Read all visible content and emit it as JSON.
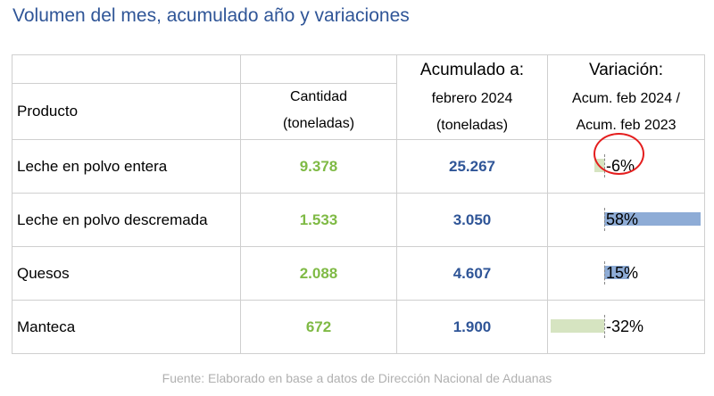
{
  "title": "Volumen del mes, acumulado año y variaciones",
  "headers": {
    "producto": "Producto",
    "cantidad_l1": "Cantidad",
    "cantidad_l2": "(toneladas)",
    "acumulado_l1": "Acumulado a:",
    "acumulado_l2": "febrero 2024",
    "acumulado_l3": "(toneladas)",
    "variacion_l1": "Variación:",
    "variacion_l2": "Acum. feb 2024 /",
    "variacion_l3": "Acum. feb 2023"
  },
  "rows": [
    {
      "producto": "Leche en polvo entera",
      "cantidad": "9.378",
      "acumulado": "25.267",
      "variacion": "-6%"
    },
    {
      "producto": "Leche en polvo descremada",
      "cantidad": "1.533",
      "acumulado": "3.050",
      "variacion": "58%"
    },
    {
      "producto": "Quesos",
      "cantidad": "2.088",
      "acumulado": "4.607",
      "variacion": "15%"
    },
    {
      "producto": "Manteca",
      "cantidad": "672",
      "acumulado": "1.900",
      "variacion": "-32%"
    }
  ],
  "source": "Fuente: Elaborado en base a datos de Dirección Nacional de Aduanas",
  "colors": {
    "cantidad": "#7fba45",
    "acumulado": "#2f5597",
    "positive_bar": "#8eacd6",
    "negative_bar": "#d6e4c1",
    "highlight_circle": "#e41e1e"
  },
  "chart_data": {
    "type": "table",
    "title": "Volumen del mes, acumulado año y variaciones",
    "columns": [
      "Producto",
      "Cantidad (toneladas)",
      "Acumulado a: febrero 2024 (toneladas)",
      "Variación: Acum. feb 2024 / Acum. feb 2023"
    ],
    "categories": [
      "Leche en polvo entera",
      "Leche en polvo descremada",
      "Quesos",
      "Manteca"
    ],
    "series": [
      {
        "name": "Cantidad (toneladas)",
        "values": [
          9378,
          1533,
          2088,
          672
        ]
      },
      {
        "name": "Acumulado a: febrero 2024 (toneladas)",
        "values": [
          25267,
          3050,
          4607,
          1900
        ]
      },
      {
        "name": "Variación: Acum. feb 2024 / Acum. feb 2023",
        "values": [
          -6,
          58,
          15,
          -32
        ]
      }
    ],
    "highlighted_row": "Leche en polvo entera"
  }
}
